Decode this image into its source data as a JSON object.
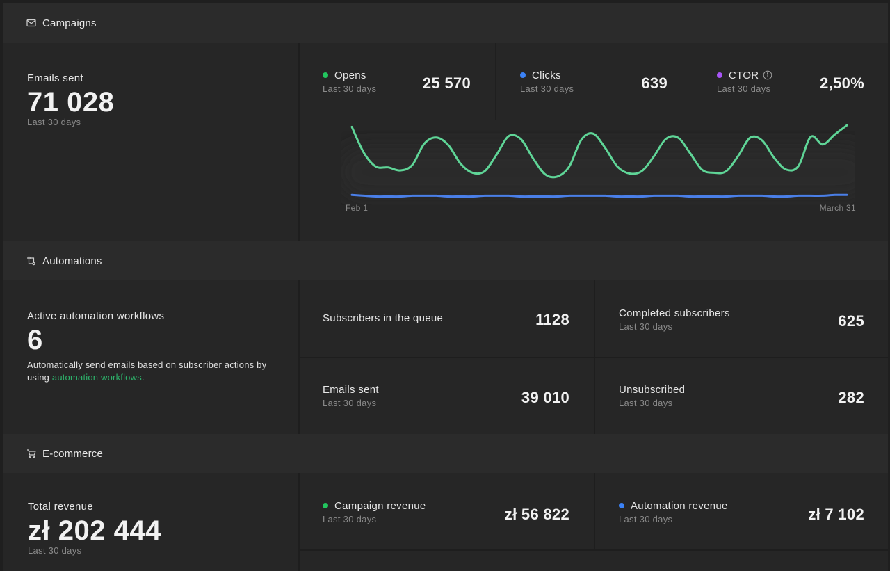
{
  "campaigns": {
    "header": "Campaigns",
    "emails_sent": {
      "label": "Emails sent",
      "value": "71 028",
      "period": "Last 30 days"
    },
    "metrics": [
      {
        "label": "Opens",
        "period": "Last 30 days",
        "value": "25 570",
        "color": "#22c55e"
      },
      {
        "label": "Clicks",
        "period": "Last 30 days",
        "value": "639",
        "color": "#3b82f6"
      },
      {
        "label": "CTOR",
        "period": "Last 30 days",
        "value": "2,50%",
        "color": "#a855f7"
      }
    ],
    "chart_data": {
      "type": "line",
      "x_start_label": "Feb 1",
      "x_end_label": "March 31",
      "series": [
        {
          "name": "Opens",
          "color": "#5fd597",
          "values": [
            96,
            62,
            44,
            43,
            39,
            46,
            74,
            82,
            72,
            48,
            36,
            38,
            60,
            84,
            80,
            55,
            34,
            31,
            44,
            79,
            87,
            68,
            44,
            35,
            38,
            57,
            80,
            82,
            62,
            40,
            36,
            38,
            58,
            82,
            78,
            55,
            40,
            45,
            83,
            73,
            86,
            98
          ]
        },
        {
          "name": "Clicks",
          "color": "#4a7fe8",
          "values": [
            7,
            6,
            5,
            5,
            5,
            6,
            6,
            6,
            5,
            5,
            5,
            6,
            6,
            6,
            5,
            5,
            5,
            5,
            6,
            6,
            6,
            6,
            5,
            5,
            5,
            6,
            6,
            6,
            5,
            5,
            5,
            5,
            6,
            6,
            6,
            5,
            5,
            6,
            6,
            6,
            7,
            7
          ]
        }
      ],
      "grid": false,
      "legend": "none"
    }
  },
  "automations": {
    "header": "Automations",
    "active": {
      "label": "Active automation workflows",
      "value": "6",
      "desc_before": "Automatically send emails based on subscriber actions by using ",
      "desc_link": "automation workflows",
      "desc_after": "."
    },
    "queue": {
      "label": "Subscribers in the queue",
      "value": "1128"
    },
    "completed": {
      "label": "Completed subscribers",
      "period": "Last 30 days",
      "value": "625"
    },
    "emails_sent": {
      "label": "Emails sent",
      "period": "Last 30 days",
      "value": "39 010"
    },
    "unsubscribed": {
      "label": "Unsubscribed",
      "period": "Last 30 days",
      "value": "282"
    }
  },
  "ecommerce": {
    "header": "E-commerce",
    "total": {
      "label": "Total revenue",
      "value": "zł 202 444",
      "period": "Last 30 days"
    },
    "campaign_revenue": {
      "label": "Campaign revenue",
      "period": "Last 30 days",
      "value": "zł 56 822",
      "color": "#22c55e"
    },
    "automation_revenue": {
      "label": "Automation revenue",
      "period": "Last 30 days",
      "value": "zł 7 102",
      "color": "#3b82f6"
    }
  },
  "icons": {
    "campaigns": "mail-icon",
    "automations": "workflow-icon",
    "ecommerce": "cart-icon",
    "ctor_info": "info-icon"
  }
}
